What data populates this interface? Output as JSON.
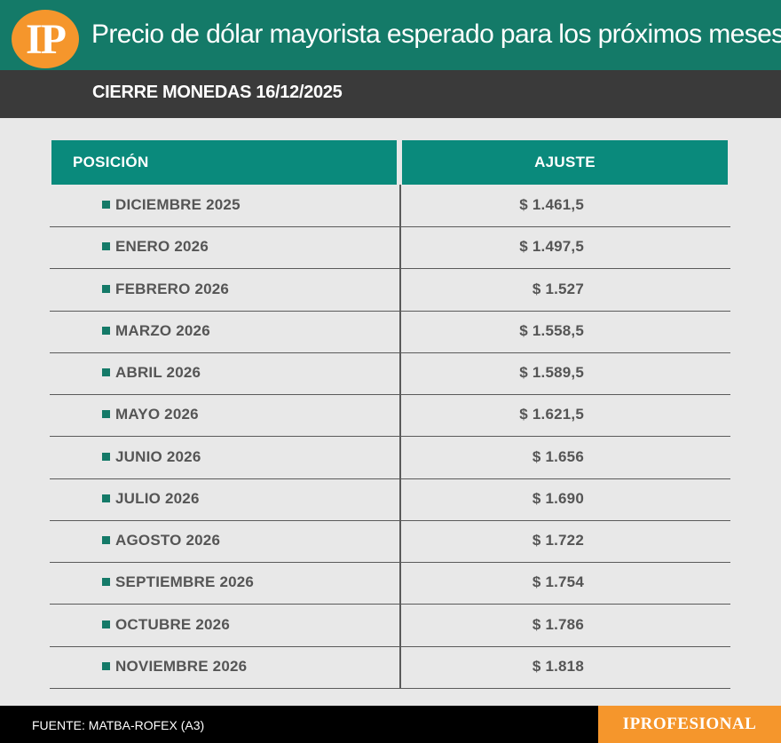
{
  "header": {
    "logo_text": "IP",
    "title": "Precio de dólar mayorista esperado para los próximos meses"
  },
  "subheader": {
    "title": "CIERRE MONEDAS 16/12/2025"
  },
  "colors": {
    "header_green": "#147a68",
    "table_header_teal": "#0a8a7c",
    "subheader_gray": "#3a3a3a",
    "accent_orange": "#f5962c",
    "background": "#e8e8e8",
    "text_gray": "#555555"
  },
  "chart_data": {
    "type": "table",
    "columns": [
      "POSICIÓN",
      "AJUSTE"
    ],
    "rows": [
      {
        "posicion": "DICIEMBRE 2025",
        "ajuste": "$ 1.461,5",
        "value": 1461.5
      },
      {
        "posicion": "ENERO 2026",
        "ajuste": "$ 1.497,5",
        "value": 1497.5
      },
      {
        "posicion": "FEBRERO 2026",
        "ajuste": "$ 1.527",
        "value": 1527
      },
      {
        "posicion": "MARZO 2026",
        "ajuste": "$ 1.558,5",
        "value": 1558.5
      },
      {
        "posicion": "ABRIL 2026",
        "ajuste": "$ 1.589,5",
        "value": 1589.5
      },
      {
        "posicion": "MAYO 2026",
        "ajuste": "$ 1.621,5",
        "value": 1621.5
      },
      {
        "posicion": "JUNIO 2026",
        "ajuste": "$ 1.656",
        "value": 1656
      },
      {
        "posicion": "JULIO 2026",
        "ajuste": "$ 1.690",
        "value": 1690
      },
      {
        "posicion": "AGOSTO 2026",
        "ajuste": "$ 1.722",
        "value": 1722
      },
      {
        "posicion": "SEPTIEMBRE 2026",
        "ajuste": "$ 1.754",
        "value": 1754
      },
      {
        "posicion": "OCTUBRE 2026",
        "ajuste": "$ 1.786",
        "value": 1786
      },
      {
        "posicion": "NOVIEMBRE 2026",
        "ajuste": "$ 1.818",
        "value": 1818
      }
    ]
  },
  "footer": {
    "source": "FUENTE: MATBA-ROFEX (A3)",
    "brand": "IPROFESIONAL"
  }
}
